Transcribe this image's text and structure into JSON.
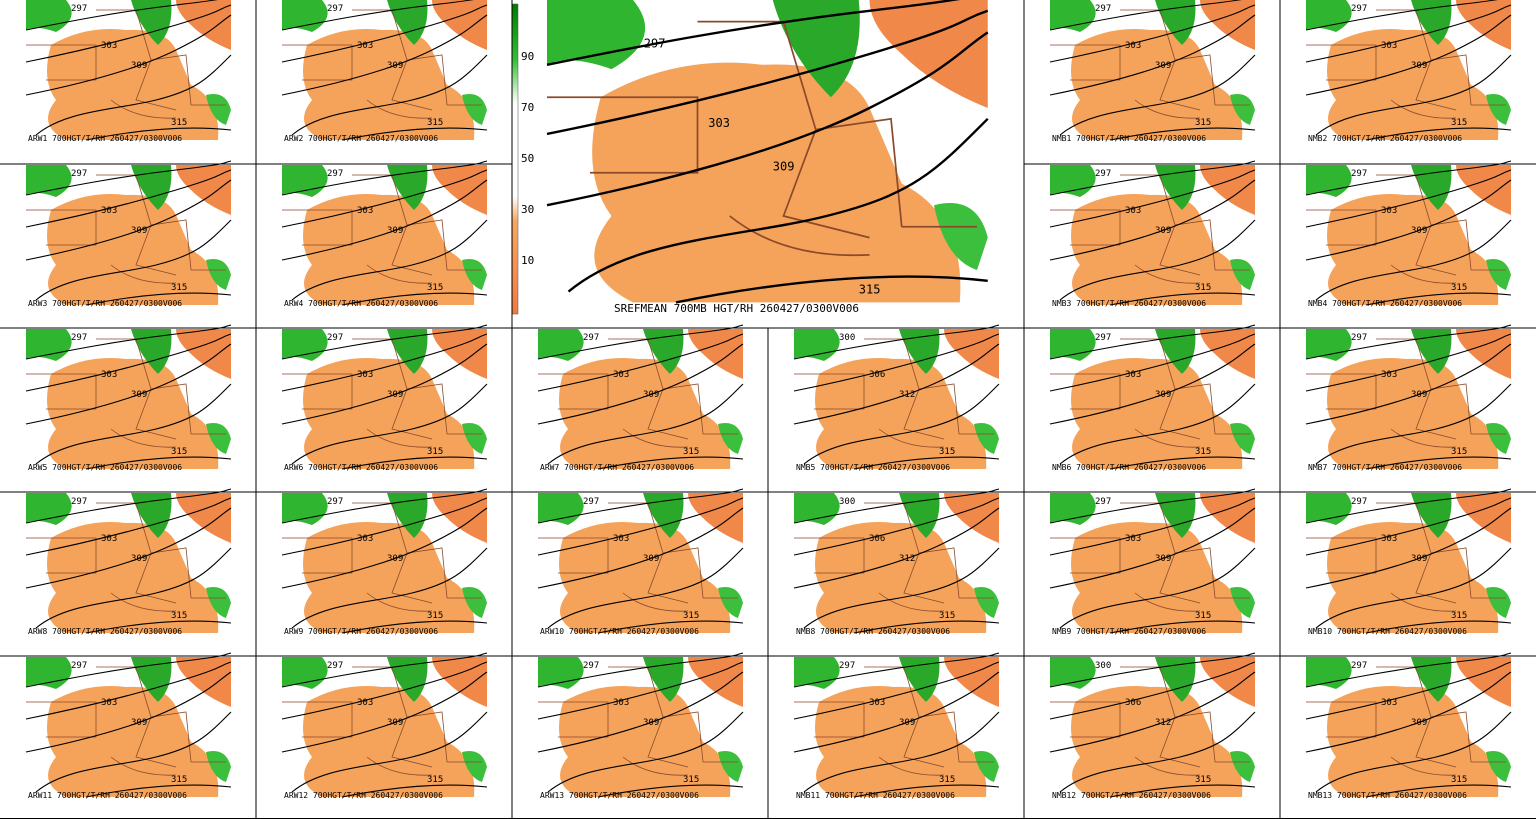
{
  "main": {
    "caption": "SREFMEAN 700MB HGT/RH 260427/0300V006",
    "contours": [
      "297",
      "303",
      "309",
      "315"
    ]
  },
  "colorbar": {
    "ticks": [
      "90",
      "70",
      "50",
      "30",
      "10"
    ]
  },
  "panels": [
    {
      "caption": "ARW1 700HGT/T/RH 260427/0300V006",
      "contours": [
        "297",
        "303",
        "309",
        "315"
      ]
    },
    {
      "caption": "ARW2 700HGT/T/RH 260427/0300V006",
      "contours": [
        "297",
        "303",
        "309",
        "315"
      ]
    },
    {
      "caption": "NMB1 700HGT/T/RH 260427/0300V006",
      "contours": [
        "297",
        "303",
        "309",
        "315"
      ]
    },
    {
      "caption": "NMB2 700HGT/T/RH 260427/0300V006",
      "contours": [
        "297",
        "303",
        "309",
        "315"
      ]
    },
    {
      "caption": "ARW3 700HGT/T/RH 260427/0300V006",
      "contours": [
        "297",
        "303",
        "309",
        "315"
      ]
    },
    {
      "caption": "ARW4 700HGT/T/RH 260427/0300V006",
      "contours": [
        "297",
        "303",
        "309",
        "315"
      ]
    },
    {
      "caption": "NMB3 700HGT/T/RH 260427/0300V006",
      "contours": [
        "297",
        "303",
        "309",
        "315"
      ]
    },
    {
      "caption": "NMB4 700HGT/T/RH 260427/0300V006",
      "contours": [
        "297",
        "303",
        "309",
        "315"
      ]
    },
    {
      "caption": "ARW5 700HGT/T/RH 260427/0300V006",
      "contours": [
        "297",
        "303",
        "309",
        "315"
      ]
    },
    {
      "caption": "ARW6 700HGT/T/RH 260427/0300V006",
      "contours": [
        "297",
        "303",
        "309",
        "315"
      ]
    },
    {
      "caption": "ARW7 700HGT/T/RH 260427/0300V006",
      "contours": [
        "297",
        "303",
        "309",
        "315"
      ]
    },
    {
      "caption": "NMB5 700HGT/T/RH 260427/0300V006",
      "contours": [
        "300",
        "306",
        "312",
        "315"
      ]
    },
    {
      "caption": "NMB6 700HGT/T/RH 260427/0300V006",
      "contours": [
        "297",
        "303",
        "309",
        "315"
      ]
    },
    {
      "caption": "NMB7 700HGT/T/RH 260427/0300V006",
      "contours": [
        "297",
        "303",
        "309",
        "315"
      ]
    },
    {
      "caption": "ARW8 700HGT/T/RH 260427/0300V006",
      "contours": [
        "297",
        "303",
        "309",
        "315"
      ]
    },
    {
      "caption": "ARW9 700HGT/T/RH 260427/0300V006",
      "contours": [
        "297",
        "303",
        "309",
        "315"
      ]
    },
    {
      "caption": "ARW10 700HGT/T/RH 260427/0300V006",
      "contours": [
        "297",
        "303",
        "309",
        "315"
      ]
    },
    {
      "caption": "NMB8 700HGT/T/RH 260427/0300V006",
      "contours": [
        "300",
        "306",
        "312",
        "315"
      ]
    },
    {
      "caption": "NMB9 700HGT/T/RH 260427/0300V006",
      "contours": [
        "297",
        "303",
        "309",
        "315"
      ]
    },
    {
      "caption": "NMB10 700HGT/T/RH 260427/0300V006",
      "contours": [
        "297",
        "303",
        "309",
        "315"
      ]
    },
    {
      "caption": "ARW11 700HGT/T/RH 260427/0300V006",
      "contours": [
        "297",
        "303",
        "309",
        "315"
      ]
    },
    {
      "caption": "ARW12 700HGT/T/RH 260427/0300V006",
      "contours": [
        "297",
        "303",
        "309",
        "315"
      ]
    },
    {
      "caption": "ARW13 700HGT/T/RH 260427/0300V006",
      "contours": [
        "297",
        "303",
        "309",
        "315"
      ]
    },
    {
      "caption": "NMB11 700HGT/T/RH 260427/0300V006",
      "contours": [
        "297",
        "303",
        "309",
        "315"
      ]
    },
    {
      "caption": "NMB12 700HGT/T/RH 260427/0300V006",
      "contours": [
        "300",
        "306",
        "312",
        "315"
      ]
    },
    {
      "caption": "NMB13 700HGT/T/RH 260427/0300V006",
      "contours": [
        "297",
        "303",
        "309",
        "315"
      ]
    }
  ]
}
